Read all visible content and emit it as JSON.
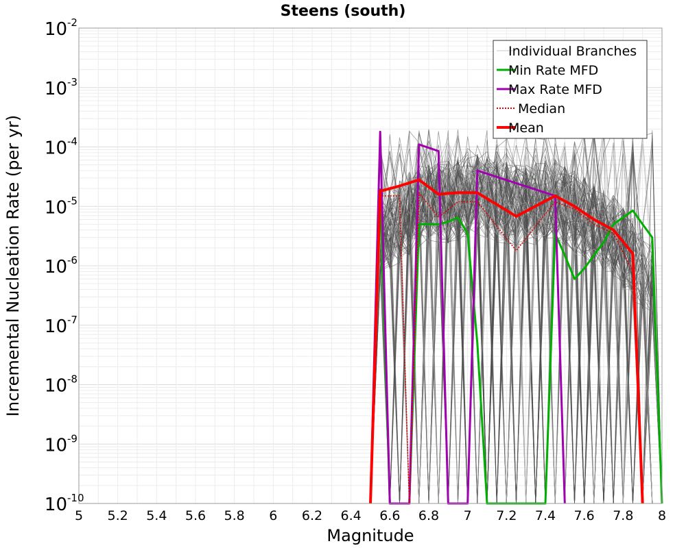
{
  "chart_data": {
    "type": "line",
    "title": "Steens (south)",
    "xlabel": "Magnitude",
    "ylabel": "Incremental Nucleation Rate (per yr)",
    "xlim": [
      5,
      8
    ],
    "ylim": [
      1e-10,
      0.01
    ],
    "yscale": "log",
    "grid": true,
    "legend_position": "top-right",
    "x_ticks": [
      "5",
      "5.2",
      "5.4",
      "5.6",
      "5.8",
      "6",
      "6.2",
      "6.4",
      "6.6",
      "6.8",
      "7",
      "7.2",
      "7.4",
      "7.6",
      "7.8",
      "8"
    ],
    "y_ticks": [
      {
        "base": "10",
        "exp": "-2"
      },
      {
        "base": "10",
        "exp": "-3"
      },
      {
        "base": "10",
        "exp": "-4"
      },
      {
        "base": "10",
        "exp": "-5"
      },
      {
        "base": "10",
        "exp": "-6"
      },
      {
        "base": "10",
        "exp": "-7"
      },
      {
        "base": "10",
        "exp": "-8"
      },
      {
        "base": "10",
        "exp": "-9"
      },
      {
        "base": "10",
        "exp": "-10"
      }
    ],
    "series": [
      {
        "name": "Min Rate MFD",
        "color": "#00b000",
        "x": [
          6.55,
          6.6,
          6.65,
          6.7,
          6.75,
          6.8,
          6.85,
          6.9,
          6.95,
          7.0,
          7.05,
          7.1,
          7.4,
          7.45,
          7.5,
          7.55,
          7.6,
          7.65,
          7.7,
          7.75,
          7.8,
          7.85,
          7.9,
          7.95,
          8.0
        ],
        "y": [
          2e-05,
          1e-10,
          1e-10,
          1e-10,
          5e-06,
          5e-06,
          5e-06,
          5.5e-06,
          6.5e-06,
          3.5e-06,
          5e-08,
          1e-10,
          1e-10,
          3.5e-06,
          1.5e-06,
          6e-07,
          9e-07,
          1.5e-06,
          2.5e-06,
          5e-06,
          6.5e-06,
          8.5e-06,
          5e-06,
          3e-06,
          1e-10
        ]
      },
      {
        "name": "Max Rate MFD",
        "color": "#a000b0",
        "x": [
          6.5,
          6.55,
          6.6,
          6.7,
          6.75,
          6.85,
          6.9,
          7.0,
          7.05,
          7.45,
          7.5
        ],
        "y": [
          1e-10,
          0.00018,
          1e-10,
          1e-10,
          0.00011,
          8.5e-05,
          1e-10,
          1e-10,
          4e-05,
          1.5e-05,
          1e-10
        ]
      },
      {
        "name": "Median",
        "color": "#e00000",
        "x": [
          6.5,
          6.55,
          6.65,
          6.7,
          6.75,
          6.85,
          6.95,
          7.05,
          7.25,
          7.45,
          7.55,
          7.65,
          7.75,
          7.85,
          7.9
        ],
        "y": [
          1e-10,
          1.5e-05,
          1.5e-05,
          1e-10,
          1.7e-05,
          6.5e-06,
          1.2e-05,
          1.2e-05,
          1.8e-06,
          1.2e-05,
          9e-06,
          5e-06,
          3.5e-06,
          8e-07,
          1e-10
        ]
      },
      {
        "name": "Mean",
        "color": "#ff0000",
        "x": [
          6.5,
          6.55,
          6.65,
          6.75,
          6.85,
          6.95,
          7.05,
          7.25,
          7.45,
          7.55,
          7.65,
          7.75,
          7.85,
          7.9
        ],
        "y": [
          1e-10,
          1.8e-05,
          2.2e-05,
          2.8e-05,
          1.6e-05,
          1.7e-05,
          1.7e-05,
          6.8e-06,
          1.5e-05,
          1e-05,
          6e-06,
          4e-06,
          1.6e-06,
          1e-10
        ]
      }
    ],
    "branches": {
      "name": "Individual Branches",
      "color": "#4d4d4d",
      "count": 130
    },
    "legend": [
      {
        "label": "Individual Branches",
        "color": "#c8c8c8",
        "style": "thin"
      },
      {
        "label": "Min Rate MFD",
        "color": "#00b000",
        "style": "solid"
      },
      {
        "label": "Max Rate MFD",
        "color": "#a000b0",
        "style": "solid"
      },
      {
        "label": "Median",
        "color": "#e00000",
        "style": "dotted"
      },
      {
        "label": "Mean",
        "color": "#ff0000",
        "style": "thick"
      }
    ]
  }
}
